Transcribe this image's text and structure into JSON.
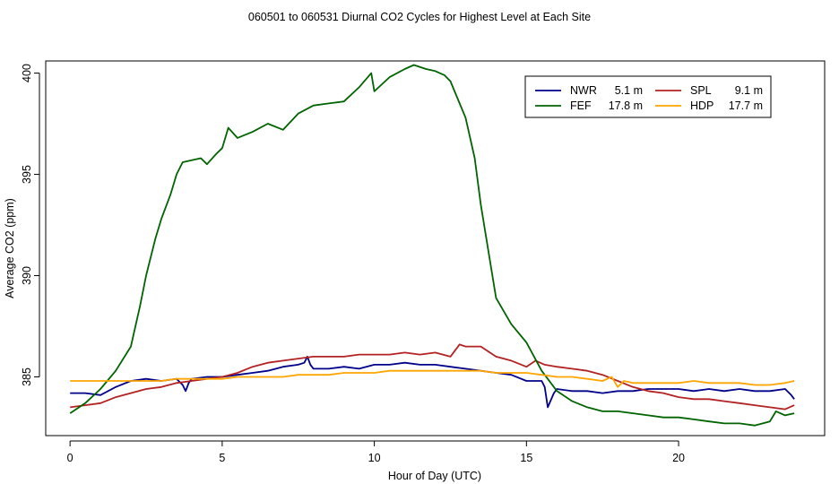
{
  "chart_data": {
    "type": "line",
    "title": "060501  to  060531 Diurnal CO2 Cycles for Highest Level at Each Site",
    "xlabel": "Hour of Day (UTC)",
    "ylabel": "Average CO2 (ppm)",
    "xlim": [
      -0.8,
      24.8
    ],
    "ylim": [
      382.1,
      400.6
    ],
    "xticks": [
      0,
      5,
      10,
      15,
      20
    ],
    "yticks": [
      385,
      390,
      395,
      400
    ],
    "grid": false,
    "legend_position": "top-right",
    "series": [
      {
        "name": "NWR",
        "height": "5.1 m",
        "color": "#00008b",
        "x": [
          0,
          0.5,
          1,
          1.5,
          2,
          2.5,
          3,
          3.5,
          3.7,
          3.8,
          3.9,
          4,
          4.5,
          5,
          5.5,
          6,
          6.5,
          7,
          7.5,
          7.7,
          7.8,
          7.9,
          8,
          8.5,
          9,
          9.5,
          10,
          10.5,
          11,
          11.5,
          12,
          12.5,
          13,
          13.5,
          14,
          14.5,
          15,
          15.5,
          15.6,
          15.7,
          15.9,
          16,
          16.5,
          17,
          17.5,
          18,
          18.5,
          19,
          19.5,
          20,
          20.5,
          21,
          21.5,
          22,
          22.5,
          23,
          23.5,
          23.7,
          23.8
        ],
        "values": [
          384.2,
          384.2,
          384.1,
          384.5,
          384.8,
          384.9,
          384.8,
          384.9,
          384.6,
          384.3,
          384.7,
          384.9,
          385.0,
          385.0,
          385.1,
          385.2,
          385.3,
          385.5,
          385.6,
          385.7,
          386.0,
          385.6,
          385.4,
          385.4,
          385.5,
          385.4,
          385.6,
          385.6,
          385.7,
          385.6,
          385.6,
          385.5,
          385.4,
          385.3,
          385.2,
          385.1,
          384.8,
          384.8,
          384.5,
          383.5,
          384.2,
          384.4,
          384.3,
          384.3,
          384.2,
          384.3,
          384.3,
          384.4,
          384.4,
          384.4,
          384.3,
          384.4,
          384.3,
          384.4,
          384.3,
          384.3,
          384.4,
          384.1,
          383.9
        ]
      },
      {
        "name": "SPL",
        "height": "9.1 m",
        "color": "#b22222",
        "x": [
          0,
          0.5,
          1,
          1.5,
          2,
          2.5,
          3,
          3.5,
          4,
          4.5,
          5,
          5.5,
          6,
          6.5,
          7,
          7.5,
          8,
          8.5,
          9,
          9.5,
          10,
          10.5,
          11,
          11.5,
          12,
          12.5,
          12.8,
          13,
          13.5,
          14,
          14.5,
          15,
          15.3,
          15.6,
          16,
          16.5,
          17,
          17.5,
          18,
          18.5,
          19,
          19.5,
          20,
          20.5,
          21,
          21.5,
          22,
          22.5,
          23,
          23.5,
          23.8
        ],
        "values": [
          383.5,
          383.6,
          383.7,
          384.0,
          384.2,
          384.4,
          384.5,
          384.7,
          384.8,
          384.9,
          385.0,
          385.2,
          385.5,
          385.7,
          385.8,
          385.9,
          386.0,
          386.0,
          386.0,
          386.1,
          386.1,
          386.1,
          386.2,
          386.1,
          386.2,
          386.0,
          386.6,
          386.5,
          386.5,
          386.0,
          385.8,
          385.5,
          385.8,
          385.6,
          385.5,
          385.4,
          385.3,
          385.1,
          384.8,
          384.5,
          384.3,
          384.2,
          384.0,
          383.9,
          383.9,
          383.8,
          383.7,
          383.6,
          383.5,
          383.4,
          383.6
        ]
      },
      {
        "name": "FEF",
        "height": "17.8 m",
        "color": "#006400",
        "x": [
          0,
          0.5,
          1,
          1.5,
          2,
          2.3,
          2.5,
          2.8,
          3,
          3.3,
          3.5,
          3.7,
          4,
          4.3,
          4.5,
          4.8,
          5,
          5.2,
          5.5,
          6,
          6.5,
          7,
          7.5,
          8,
          8.5,
          9,
          9.5,
          9.9,
          10,
          10.5,
          11,
          11.3,
          11.7,
          12,
          12.3,
          12.5,
          13,
          13.3,
          13.5,
          14,
          14.5,
          15,
          15.5,
          16,
          16.5,
          17,
          17.5,
          18,
          18.5,
          19,
          19.5,
          20,
          20.5,
          21,
          21.5,
          22,
          22.5,
          23,
          23.2,
          23.5,
          23.8
        ],
        "values": [
          383.2,
          383.7,
          384.4,
          385.3,
          386.5,
          388.5,
          390.0,
          391.8,
          392.8,
          394.0,
          395.0,
          395.6,
          395.7,
          395.8,
          395.5,
          396.0,
          396.3,
          397.3,
          396.8,
          397.1,
          397.5,
          397.2,
          398.0,
          398.4,
          398.5,
          398.6,
          399.3,
          400.0,
          399.1,
          399.8,
          400.2,
          400.4,
          400.2,
          400.1,
          399.9,
          399.6,
          397.8,
          395.8,
          393.5,
          388.9,
          387.6,
          386.7,
          385.3,
          384.3,
          383.8,
          383.5,
          383.3,
          383.3,
          383.2,
          383.1,
          383.0,
          383.0,
          382.9,
          382.8,
          382.7,
          382.7,
          382.6,
          382.8,
          383.3,
          383.1,
          383.2
        ]
      },
      {
        "name": "HDP",
        "height": "17.7 m",
        "color": "#ffa500",
        "x": [
          0,
          0.5,
          1,
          1.5,
          2,
          2.5,
          3,
          3.5,
          4,
          4.5,
          5,
          5.5,
          6,
          6.5,
          7,
          7.5,
          8,
          8.5,
          9,
          9.5,
          10,
          10.5,
          11,
          11.5,
          12,
          12.5,
          13,
          13.5,
          14,
          14.5,
          15,
          15.5,
          16,
          16.5,
          17,
          17.5,
          17.8,
          18,
          18.2,
          18.5,
          19,
          19.5,
          20,
          20.5,
          21,
          21.5,
          22,
          22.5,
          23,
          23.5,
          23.8
        ],
        "values": [
          384.8,
          384.8,
          384.8,
          384.8,
          384.8,
          384.8,
          384.8,
          384.9,
          384.9,
          384.9,
          384.9,
          385.0,
          385.0,
          385.0,
          385.0,
          385.1,
          385.1,
          385.1,
          385.2,
          385.2,
          385.2,
          385.3,
          385.3,
          385.3,
          385.3,
          385.3,
          385.3,
          385.3,
          385.2,
          385.2,
          385.2,
          385.1,
          385.0,
          385.0,
          384.9,
          384.8,
          385.0,
          384.5,
          384.8,
          384.7,
          384.7,
          384.7,
          384.7,
          384.8,
          384.7,
          384.7,
          384.7,
          384.6,
          384.6,
          384.7,
          384.8
        ]
      }
    ],
    "legend_order": [
      "NWR",
      "SPL",
      "FEF",
      "HDP"
    ]
  }
}
